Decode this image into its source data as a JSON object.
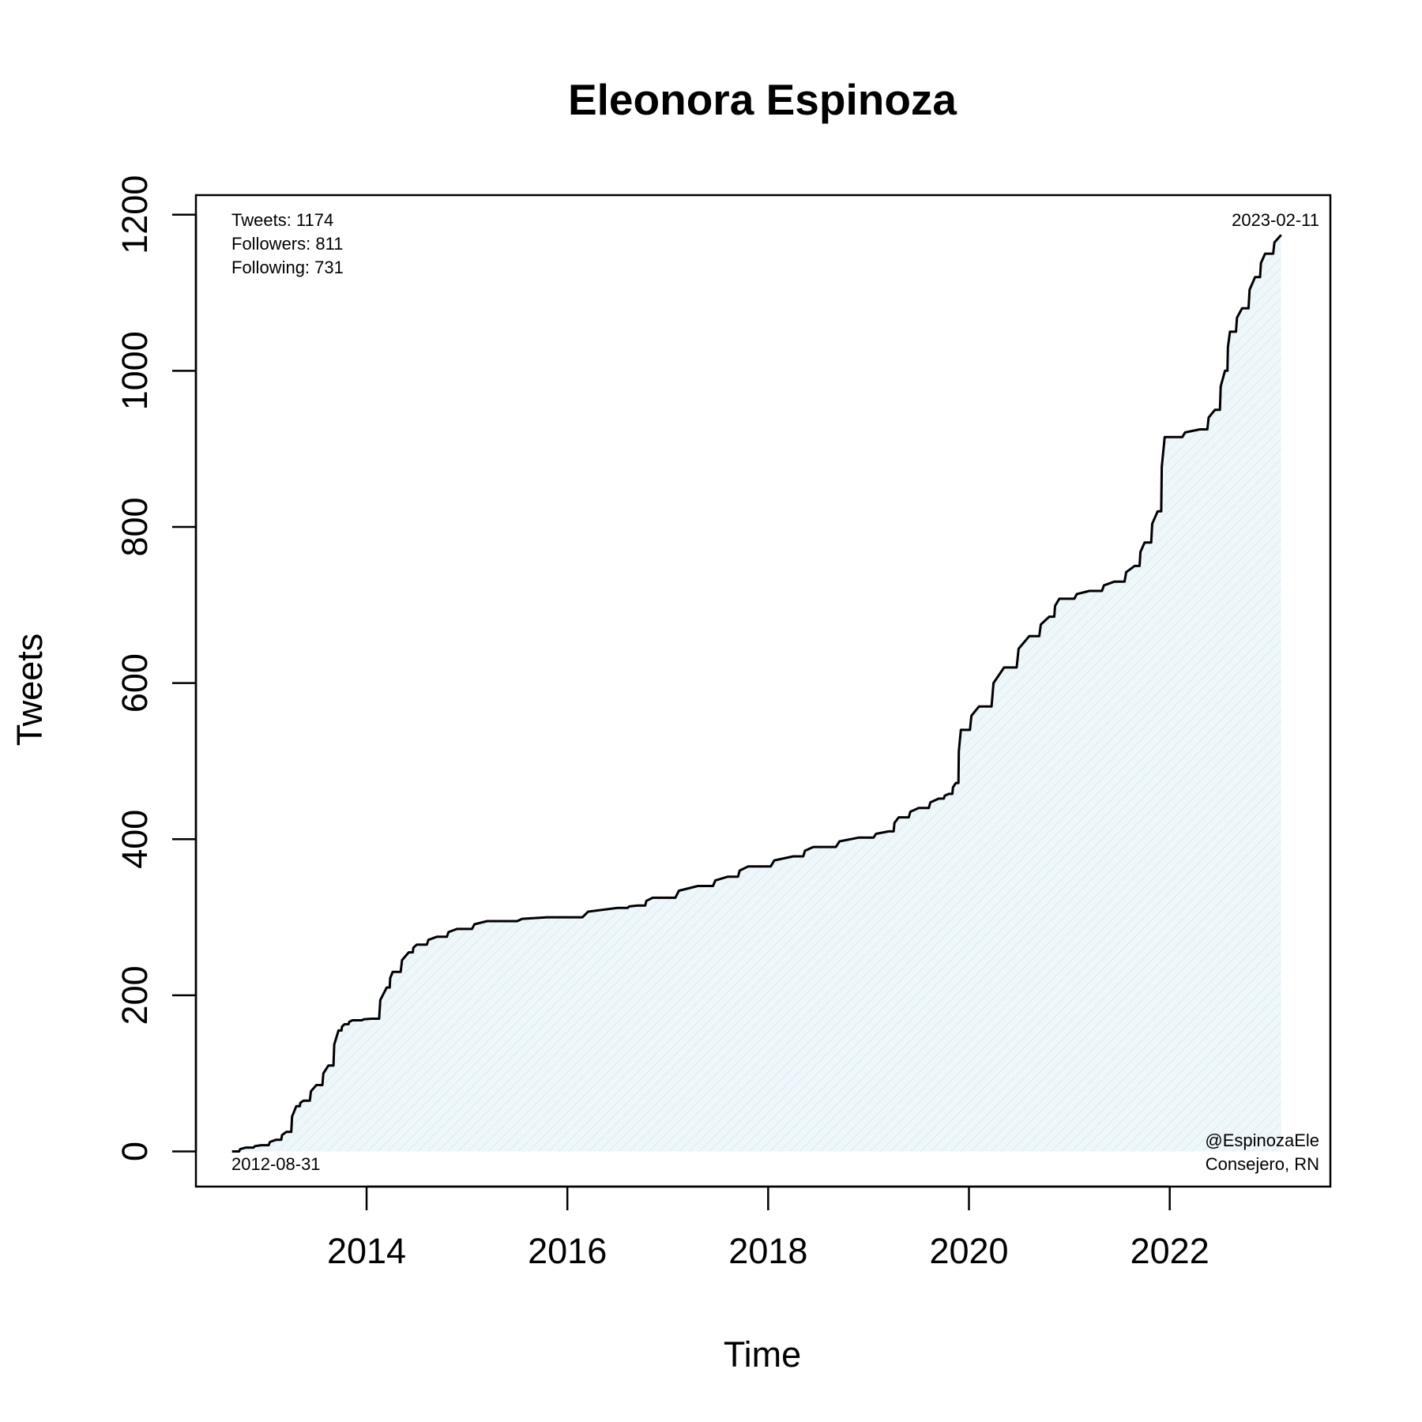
{
  "chart_data": {
    "type": "area",
    "title": "Eleonora Espinoza",
    "xlabel": "Time",
    "ylabel": "Tweets",
    "xlim": [
      2012.3,
      2023.6
    ],
    "ylim": [
      -45,
      1225
    ],
    "x_ticks": [
      2014,
      2016,
      2018,
      2020,
      2022
    ],
    "y_ticks": [
      0,
      200,
      400,
      600,
      800,
      1000,
      1200
    ],
    "grid": false,
    "legend": "none",
    "line_color": "#000000",
    "fill_color": "#e8f3f7",
    "series": [
      {
        "x": [
          2012.66,
          2012.8,
          2012.95,
          2013.1,
          2013.2,
          2013.3,
          2013.37,
          2013.5,
          2013.62,
          2013.72,
          2013.78,
          2013.86,
          2014.05,
          2014.2,
          2014.26,
          2014.42,
          2014.5,
          2014.7,
          2014.9,
          2015.2,
          2015.8,
          2016.5,
          2016.7,
          2016.85,
          2017.3,
          2017.6,
          2017.8,
          2018.25,
          2018.45,
          2018.9,
          2019.2,
          2019.3,
          2019.5,
          2019.7,
          2019.8,
          2019.87,
          2019.92,
          2020.1,
          2020.35,
          2020.6,
          2020.8,
          2020.9,
          2021.2,
          2021.45,
          2021.65,
          2021.75,
          2021.88,
          2021.95,
          2022.3,
          2022.45,
          2022.55,
          2022.6,
          2022.72,
          2022.85,
          2022.95,
          2023.11
        ],
        "y": [
          0,
          5,
          8,
          15,
          25,
          58,
          65,
          85,
          110,
          155,
          163,
          168,
          170,
          210,
          230,
          255,
          265,
          275,
          285,
          295,
          300,
          312,
          315,
          325,
          340,
          352,
          365,
          378,
          390,
          402,
          410,
          428,
          440,
          452,
          458,
          472,
          540,
          570,
          620,
          660,
          685,
          708,
          718,
          730,
          750,
          780,
          820,
          915,
          925,
          950,
          1000,
          1050,
          1080,
          1120,
          1150,
          1174
        ]
      }
    ],
    "annotations": {
      "tweets": "Tweets: 1174",
      "followers": "Followers: 811",
      "following": "Following: 731",
      "end_date": "2023-02-11",
      "start_date": "2012-08-31",
      "handle": "@EspinozaEle",
      "role": "Consejero, RN"
    }
  }
}
